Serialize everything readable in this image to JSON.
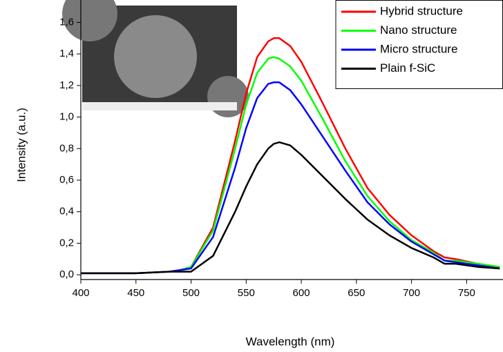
{
  "chart_data": {
    "type": "line",
    "x_label": "Wavelength (nm)",
    "y_label": "Intensity (a.u.)",
    "x": [
      400,
      450,
      480,
      490,
      500,
      520,
      540,
      550,
      560,
      570,
      575,
      580,
      590,
      600,
      620,
      640,
      660,
      680,
      700,
      720,
      730,
      740,
      760,
      780
    ],
    "series": [
      {
        "name": "Hybrid structure",
        "color": "#ff0000",
        "values": [
          0.01,
          0.01,
          0.02,
          0.03,
          0.05,
          0.3,
          0.85,
          1.15,
          1.38,
          1.48,
          1.5,
          1.5,
          1.45,
          1.35,
          1.08,
          0.8,
          0.55,
          0.38,
          0.25,
          0.15,
          0.11,
          0.1,
          0.07,
          0.05
        ]
      },
      {
        "name": "Nano structure",
        "color": "#00ff00",
        "values": [
          0.01,
          0.01,
          0.02,
          0.03,
          0.05,
          0.28,
          0.8,
          1.08,
          1.28,
          1.37,
          1.38,
          1.37,
          1.32,
          1.23,
          0.98,
          0.72,
          0.5,
          0.34,
          0.22,
          0.14,
          0.09,
          0.09,
          0.07,
          0.05
        ]
      },
      {
        "name": "Micro structure",
        "color": "#0000ff",
        "values": [
          0.01,
          0.01,
          0.02,
          0.03,
          0.04,
          0.24,
          0.68,
          0.93,
          1.12,
          1.21,
          1.22,
          1.22,
          1.17,
          1.08,
          0.87,
          0.66,
          0.46,
          0.32,
          0.21,
          0.13,
          0.09,
          0.08,
          0.06,
          0.04
        ]
      },
      {
        "name": "Plain f-SiC",
        "color": "#000000",
        "values": [
          0.01,
          0.01,
          0.02,
          0.02,
          0.02,
          0.12,
          0.4,
          0.56,
          0.7,
          0.8,
          0.83,
          0.84,
          0.82,
          0.76,
          0.62,
          0.48,
          0.35,
          0.25,
          0.17,
          0.11,
          0.07,
          0.07,
          0.05,
          0.04
        ]
      }
    ],
    "xlim": [
      400,
      783
    ],
    "ylim": [
      -0.03,
      1.72
    ],
    "xticks": [
      400,
      450,
      500,
      550,
      600,
      650,
      700,
      750
    ],
    "yticks": [
      {
        "value": 0,
        "label": "0,0"
      },
      {
        "value": 0.2,
        "label": "0,2"
      },
      {
        "value": 0.4,
        "label": "0,4"
      },
      {
        "value": 0.6,
        "label": "0,6"
      },
      {
        "value": 0.8,
        "label": "0,8"
      },
      {
        "value": 1.0,
        "label": "1,0"
      },
      {
        "value": 1.2,
        "label": "1,2"
      },
      {
        "value": 1.4,
        "label": "1,4"
      },
      {
        "value": 1.6,
        "label": "1,6"
      }
    ],
    "grid": false,
    "legend": "top-right"
  }
}
